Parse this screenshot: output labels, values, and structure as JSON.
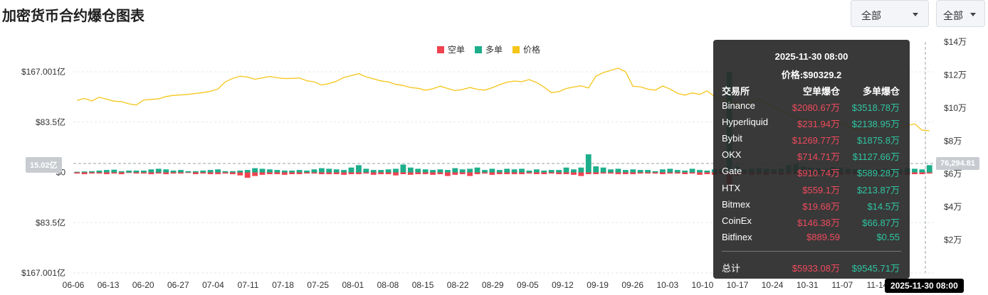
{
  "page": {
    "title": "加密货币合约爆仓图表",
    "select_exchange": "全部",
    "select_coin": "全部"
  },
  "colors": {
    "short": "#f0424f",
    "long": "#1cae8b",
    "price": "#f5c518"
  },
  "chart_data": {
    "type": "bar",
    "legend": [
      "空单",
      "多单",
      "价格"
    ],
    "legend_position": "top-center",
    "y_left_ticks": [
      "$167.001亿",
      "$83.5亿",
      "$0",
      "$83.5亿",
      "$167.001亿"
    ],
    "y_left_range": [
      -167.001,
      167.001
    ],
    "y_right_ticks": [
      "$14万",
      "$12万",
      "$10万",
      "$8万",
      "$6万",
      "$4万",
      "$2万"
    ],
    "y_right_range": [
      0,
      140000
    ],
    "x_ticks": [
      "06-06",
      "06-13",
      "06-20",
      "06-27",
      "07-04",
      "07-11",
      "07-18",
      "07-25",
      "08-01",
      "08-08",
      "08-15",
      "08-22",
      "08-29",
      "09-05",
      "09-12",
      "09-19",
      "09-26",
      "10-03",
      "10-10",
      "10-17",
      "10-24",
      "10-31",
      "11-07",
      "11-14",
      "11-"
    ],
    "x_range_days": [
      "2025-06-06",
      "2025-11-30"
    ],
    "crosshair_y_label": "15.02亿",
    "crosshair_right_label": "76,294.81",
    "crosshair_time_label": "2025-11-30 08:00",
    "series": [
      {
        "name": "多单",
        "values": [
          1,
          1.5,
          2,
          3,
          4,
          4.5,
          2,
          3,
          3,
          3,
          5,
          6,
          5,
          3,
          4,
          2,
          2,
          3,
          4,
          5,
          2,
          2,
          3,
          4,
          7,
          6,
          5,
          4,
          3,
          3,
          4,
          3,
          5,
          7,
          6,
          5,
          4,
          8,
          12,
          6,
          4,
          4,
          5,
          6,
          13,
          8,
          6,
          5,
          4,
          5,
          4,
          7,
          5,
          6,
          8,
          4,
          6,
          4,
          6,
          5,
          6,
          3,
          5,
          3,
          4,
          4,
          8,
          5,
          8,
          30,
          10,
          8,
          5,
          6,
          4,
          5,
          4,
          4,
          2,
          5,
          6,
          4,
          3,
          6,
          4,
          3,
          5,
          6,
          167,
          10,
          5,
          6,
          7,
          6,
          5,
          6,
          12,
          14,
          10,
          8,
          7,
          6,
          9,
          8,
          6,
          5,
          6,
          4,
          5,
          6,
          4,
          5,
          7,
          6,
          5,
          12
        ]
      },
      {
        "name": "空单",
        "values": [
          2,
          3,
          2,
          2,
          3,
          2,
          3,
          1,
          2,
          2,
          3,
          2,
          3,
          2,
          2,
          1,
          3,
          2,
          3,
          3,
          2,
          3,
          5,
          9,
          6,
          4,
          3,
          3,
          4,
          3,
          3,
          2,
          2,
          3,
          3,
          3,
          4,
          3,
          3,
          2,
          4,
          3,
          3,
          5,
          3,
          4,
          3,
          3,
          4,
          3,
          6,
          4,
          3,
          6,
          3,
          2,
          4,
          3,
          3,
          3,
          3,
          2,
          3,
          3,
          2,
          3,
          3,
          4,
          6,
          3,
          3,
          2,
          2,
          3,
          3,
          3,
          2,
          2,
          2,
          3,
          2,
          2,
          3,
          2,
          4,
          3,
          4,
          3,
          25,
          5,
          3,
          4,
          3,
          4,
          3,
          4,
          3,
          3,
          4,
          3,
          3,
          4,
          3,
          4,
          3,
          3,
          3,
          3,
          3,
          3,
          3,
          3,
          4,
          3,
          3,
          2
        ]
      },
      {
        "name": "价格",
        "values": [
          104500,
          105800,
          104200,
          106500,
          105300,
          104100,
          103800,
          102500,
          101800,
          104800,
          105200,
          105500,
          106900,
          107600,
          107900,
          108200,
          108800,
          109300,
          110100,
          111500,
          115800,
          117900,
          119300,
          118700,
          117400,
          118200,
          119100,
          118300,
          117800,
          117900,
          118200,
          116500,
          115800,
          113900,
          114800,
          116200,
          118500,
          119600,
          120800,
          118900,
          117600,
          116400,
          115800,
          114300,
          113600,
          112400,
          111900,
          110800,
          111600,
          113200,
          111800,
          110500,
          111200,
          112400,
          111300,
          110800,
          112200,
          114100,
          115600,
          116300,
          115900,
          117200,
          115400,
          112600,
          109300,
          109900,
          111800,
          112700,
          113400,
          112100,
          119300,
          121400,
          122800,
          124100,
          121900,
          113100,
          112800,
          111400,
          110800,
          113300,
          111500,
          108900,
          107800,
          109100,
          108200,
          110300,
          106900,
          105600,
          104100,
          102900,
          101300,
          103400,
          105100,
          102600,
          100100,
          98300,
          96200,
          94300,
          93100,
          92400,
          91200,
          90900,
          92100,
          90700,
          88900,
          87200,
          86300,
          87900,
          89200,
          88700,
          87600,
          88100,
          89400,
          90329,
          86500,
          86200
        ]
      }
    ]
  },
  "tooltip": {
    "time": "2025-11-30 08:00",
    "price": "价格:$90329.2",
    "col_exchange": "交易所",
    "col_short": "空单爆仓",
    "col_long": "多单爆仓",
    "rows": [
      {
        "exchange": "Binance",
        "short": "$2080.67万",
        "long": "$3518.78万"
      },
      {
        "exchange": "Hyperliquid",
        "short": "$231.94万",
        "long": "$2138.95万"
      },
      {
        "exchange": "Bybit",
        "short": "$1269.77万",
        "long": "$1875.8万"
      },
      {
        "exchange": "OKX",
        "short": "$714.71万",
        "long": "$1127.66万"
      },
      {
        "exchange": "Gate",
        "short": "$910.74万",
        "long": "$589.28万"
      },
      {
        "exchange": "HTX",
        "short": "$559.1万",
        "long": "$213.87万"
      },
      {
        "exchange": "Bitmex",
        "short": "$19.68万",
        "long": "$14.5万"
      },
      {
        "exchange": "CoinEx",
        "short": "$146.38万",
        "long": "$66.87万"
      },
      {
        "exchange": "Bitfinex",
        "short": "$889.59",
        "long": "$0.55"
      }
    ],
    "total_label": "总计",
    "total_short": "$5933.08万",
    "total_long": "$9545.71万"
  }
}
